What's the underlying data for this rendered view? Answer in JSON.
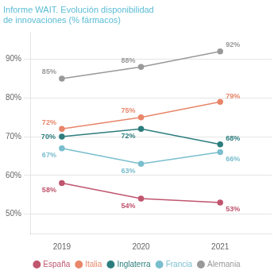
{
  "chart_data": {
    "type": "line",
    "title": "Informe WAIT. Evolución disponibilidad de innovaciones (% fármacos)",
    "x": [
      2019,
      2020,
      2021
    ],
    "xlim": [
      2018.6,
      2021.65
    ],
    "xticks": [
      2019,
      2020,
      2021
    ],
    "ylim": [
      45,
      97
    ],
    "yticks": [
      {
        "value": 50,
        "label": "50%"
      },
      {
        "value": 60,
        "label": "60%"
      },
      {
        "value": 70,
        "label": "70%"
      },
      {
        "value": 80,
        "label": "80%"
      },
      {
        "value": 90,
        "label": "90%"
      }
    ],
    "grid": "y",
    "legend": "bottom",
    "data_labels": true,
    "marker": "circle",
    "series": [
      {
        "name": "España",
        "color": "#c0556e",
        "values": [
          58,
          54,
          53
        ],
        "value_labels": [
          "58%",
          "54%",
          "53%"
        ]
      },
      {
        "name": "Italia",
        "color": "#e8866a",
        "values": [
          72,
          75,
          79
        ],
        "value_labels": [
          "72%",
          "75%",
          "79%"
        ]
      },
      {
        "name": "Inglaterra",
        "color": "#2d7d7e",
        "values": [
          70,
          72,
          68
        ],
        "value_labels": [
          "70%",
          "72%",
          "68%"
        ]
      },
      {
        "name": "Francia",
        "color": "#7abece",
        "values": [
          67,
          63,
          66
        ],
        "value_labels": [
          "67%",
          "63%",
          "66%"
        ]
      },
      {
        "name": "Alemania",
        "color": "#999999",
        "values": [
          85,
          88,
          92
        ],
        "value_labels": [
          "85%",
          "88%",
          "92%"
        ]
      }
    ]
  }
}
